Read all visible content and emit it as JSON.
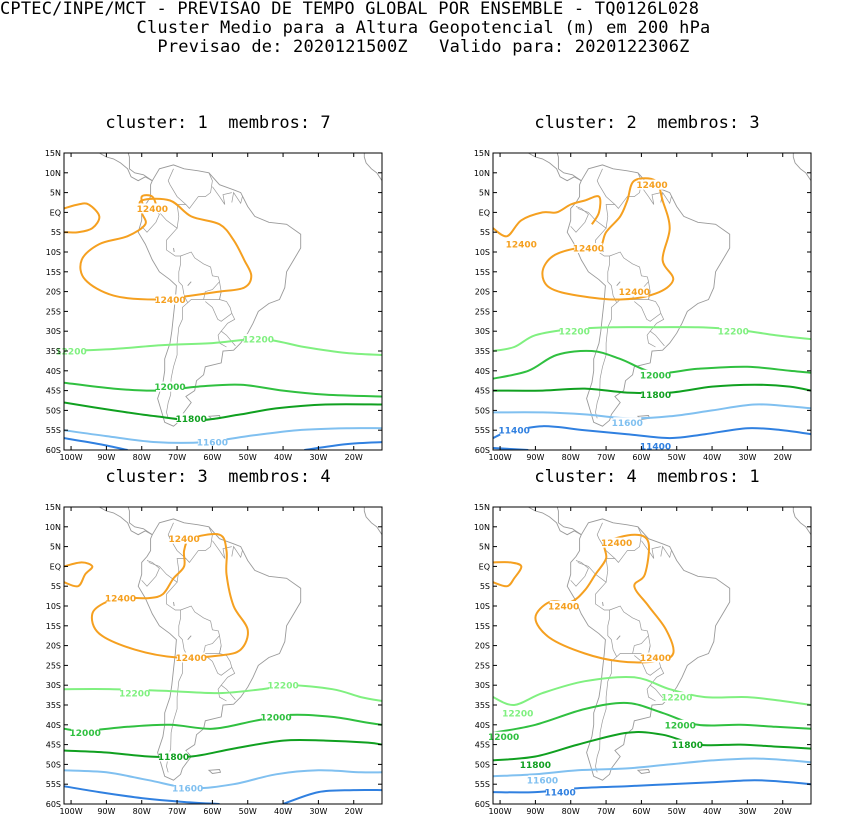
{
  "header": {
    "line1": "CPTEC/INPE/MCT - PREVISAO DE TEMPO GLOBAL POR ENSEMBLE - TQ0126L028",
    "line2": "Cluster Medio para a Altura Geopotencial (m) em 200 hPa",
    "line3": "Previsao de: 2020121500Z   Valido para: 2020122306Z"
  },
  "colors": {
    "c12400": "#f5a020",
    "c12200": "#80f080",
    "c12000": "#30c040",
    "c11800": "#10a020",
    "c11600": "#80c0f0",
    "c11400": "#3080e0",
    "coast": "#9a9a9a"
  },
  "axes": {
    "lat_labels": [
      "15N",
      "10N",
      "5N",
      "EQ",
      "5S",
      "10S",
      "15S",
      "20S",
      "25S",
      "30S",
      "35S",
      "40S",
      "45S",
      "50S",
      "55S",
      "60S"
    ],
    "lon_labels": [
      "100W",
      "90W",
      "80W",
      "70W",
      "60W",
      "50W",
      "40W",
      "30W",
      "20W"
    ]
  },
  "panels": [
    {
      "title": "cluster: 1  membros: 7",
      "contour_labels": [
        {
          "text": "12400",
          "lon": -77,
          "lat": 1,
          "level": "c12400"
        },
        {
          "text": "12400",
          "lon": -72,
          "lat": -22,
          "level": "c12400"
        },
        {
          "text": "12200",
          "lon": -100,
          "lat": -35,
          "level": "c12200"
        },
        {
          "text": "12200",
          "lon": -47,
          "lat": -32,
          "level": "c12200"
        },
        {
          "text": "12000",
          "lon": -72,
          "lat": -44,
          "level": "c12000"
        },
        {
          "text": "11800",
          "lon": -66,
          "lat": -52,
          "level": "c11800"
        },
        {
          "text": "11600",
          "lon": -60,
          "lat": -58,
          "level": "c11600"
        }
      ]
    },
    {
      "title": "cluster: 2  membros: 3",
      "contour_labels": [
        {
          "text": "12400",
          "lon": -57,
          "lat": 7,
          "level": "c12400"
        },
        {
          "text": "12400",
          "lon": -94,
          "lat": -8,
          "level": "c12400"
        },
        {
          "text": "12400",
          "lon": -75,
          "lat": -9,
          "level": "c12400"
        },
        {
          "text": "12400",
          "lon": -62,
          "lat": -20,
          "level": "c12400"
        },
        {
          "text": "12200",
          "lon": -79,
          "lat": -30,
          "level": "c12200"
        },
        {
          "text": "12200",
          "lon": -34,
          "lat": -30,
          "level": "c12200"
        },
        {
          "text": "12000",
          "lon": -56,
          "lat": -41,
          "level": "c12000"
        },
        {
          "text": "11800",
          "lon": -56,
          "lat": -46,
          "level": "c11800"
        },
        {
          "text": "11600",
          "lon": -64,
          "lat": -53,
          "level": "c11600"
        },
        {
          "text": "11400",
          "lon": -96,
          "lat": -55,
          "level": "c11400"
        },
        {
          "text": "11400",
          "lon": -56,
          "lat": -59,
          "level": "c11400"
        }
      ]
    },
    {
      "title": "cluster: 3  membros: 4",
      "contour_labels": [
        {
          "text": "12400",
          "lon": -68,
          "lat": 7,
          "level": "c12400"
        },
        {
          "text": "12400",
          "lon": -86,
          "lat": -8,
          "level": "c12400"
        },
        {
          "text": "12400",
          "lon": -66,
          "lat": -23,
          "level": "c12400"
        },
        {
          "text": "12200",
          "lon": -82,
          "lat": -32,
          "level": "c12200"
        },
        {
          "text": "12200",
          "lon": -40,
          "lat": -30,
          "level": "c12200"
        },
        {
          "text": "12000",
          "lon": -96,
          "lat": -42,
          "level": "c12000"
        },
        {
          "text": "12000",
          "lon": -42,
          "lat": -38,
          "level": "c12000"
        },
        {
          "text": "11800",
          "lon": -71,
          "lat": -48,
          "level": "c11800"
        },
        {
          "text": "11600",
          "lon": -67,
          "lat": -56,
          "level": "c11600"
        }
      ]
    },
    {
      "title": "cluster: 4  membros: 1",
      "contour_labels": [
        {
          "text": "12400",
          "lon": -67,
          "lat": 6,
          "level": "c12400"
        },
        {
          "text": "12400",
          "lon": -82,
          "lat": -10,
          "level": "c12400"
        },
        {
          "text": "12400",
          "lon": -56,
          "lat": -23,
          "level": "c12400"
        },
        {
          "text": "12200",
          "lon": -95,
          "lat": -37,
          "level": "c12200"
        },
        {
          "text": "12200",
          "lon": -50,
          "lat": -33,
          "level": "c12200"
        },
        {
          "text": "12000",
          "lon": -99,
          "lat": -43,
          "level": "c12000"
        },
        {
          "text": "12000",
          "lon": -49,
          "lat": -40,
          "level": "c12000"
        },
        {
          "text": "11800",
          "lon": -90,
          "lat": -50,
          "level": "c11800"
        },
        {
          "text": "11800",
          "lon": -47,
          "lat": -45,
          "level": "c11800"
        },
        {
          "text": "11600",
          "lon": -88,
          "lat": -54,
          "level": "c11600"
        },
        {
          "text": "11400",
          "lon": -83,
          "lat": -57,
          "level": "c11400"
        }
      ]
    }
  ]
}
